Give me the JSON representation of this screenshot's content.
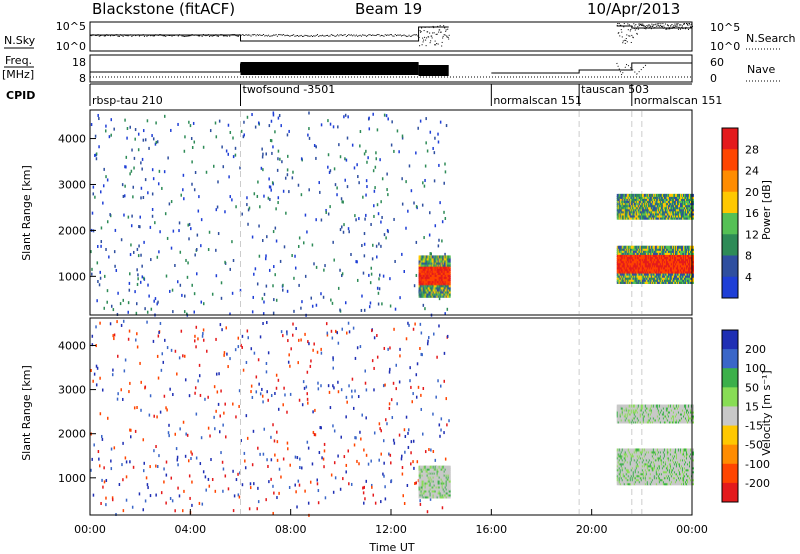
{
  "header": {
    "station": "Blackstone (fitACF)",
    "beam": "Beam 19",
    "date": "10/Apr/2013"
  },
  "chart_data": [
    {
      "type": "line",
      "panel": "noise",
      "left_label": "N.Sky",
      "right_label": "N.Search",
      "left_ticks": [
        "10^5",
        "10^0"
      ],
      "right_ticks": [
        "10^5",
        "10^0"
      ]
    },
    {
      "type": "line",
      "panel": "frequency",
      "left_label_lines": [
        "Freq.",
        "[MHz]"
      ],
      "right_label": "Nave",
      "left_ticks": [
        "18",
        "8"
      ],
      "right_ticks": [
        "60",
        "0"
      ]
    },
    {
      "type": "table",
      "panel": "cpid",
      "label": "CPID",
      "programs": [
        {
          "name": "rbsp-tau 210",
          "start": 0.0
        },
        {
          "name": "twofsound -3501",
          "start": 6.0
        },
        {
          "name": "normalscan 151",
          "start": 16.0
        },
        {
          "name": "tauscan 503",
          "start": 19.5
        },
        {
          "name": "normalscan 151",
          "start": 21.6
        }
      ]
    },
    {
      "type": "heatmap",
      "panel": "power",
      "ylabel": "Slant Range [km]",
      "yticks": [
        1000,
        2000,
        3000,
        4000
      ],
      "ylim": [
        180,
        4600
      ],
      "xlim": [
        0,
        24
      ],
      "colorbar": {
        "label": "Power [dB]",
        "ticks": [
          "28",
          "24",
          "20",
          "16",
          "12",
          "8",
          "4"
        ],
        "colors": [
          "#e41a1c",
          "#ff4500",
          "#ff8c00",
          "#ffc800",
          "#55c055",
          "#2e8b57",
          "#2f4f9f",
          "#1f3fd6"
        ]
      },
      "regions": [
        {
          "t": [
            13.1,
            14.3
          ],
          "range": [
            600,
            1500
          ],
          "level": "high"
        },
        {
          "t": [
            21.0,
            24.0
          ],
          "range": [
            900,
            1700
          ],
          "level": "high"
        },
        {
          "t": [
            21.0,
            24.0
          ],
          "range": [
            2300,
            2800
          ],
          "level": "low"
        }
      ]
    },
    {
      "type": "heatmap",
      "panel": "velocity",
      "ylabel": "Slant Range [km]",
      "yticks": [
        1000,
        2000,
        3000,
        4000
      ],
      "ylim": [
        180,
        4600
      ],
      "xlim": [
        0,
        24
      ],
      "xlabel": "Time UT",
      "xticks": [
        "00:00",
        "04:00",
        "08:00",
        "12:00",
        "16:00",
        "20:00",
        "00:00"
      ],
      "colorbar": {
        "label": "Velocity [m s⁻¹]",
        "ticks": [
          "200",
          "100",
          "50",
          "15",
          "-15",
          "-50",
          "-100",
          "-200"
        ],
        "colors": [
          "#1f2fb4",
          "#3a66c8",
          "#3cb04a",
          "#88dd55",
          "#c8c8c8",
          "#ffc800",
          "#ff8c00",
          "#ff4500",
          "#e41a1c"
        ]
      },
      "regions": [
        {
          "t": [
            13.1,
            14.3
          ],
          "range": [
            600,
            1300
          ],
          "level": "slow"
        },
        {
          "t": [
            21.0,
            24.0
          ],
          "range": [
            900,
            1700
          ],
          "level": "slow"
        },
        {
          "t": [
            21.0,
            24.0
          ],
          "range": [
            2300,
            2700
          ],
          "level": "slow"
        }
      ]
    }
  ]
}
